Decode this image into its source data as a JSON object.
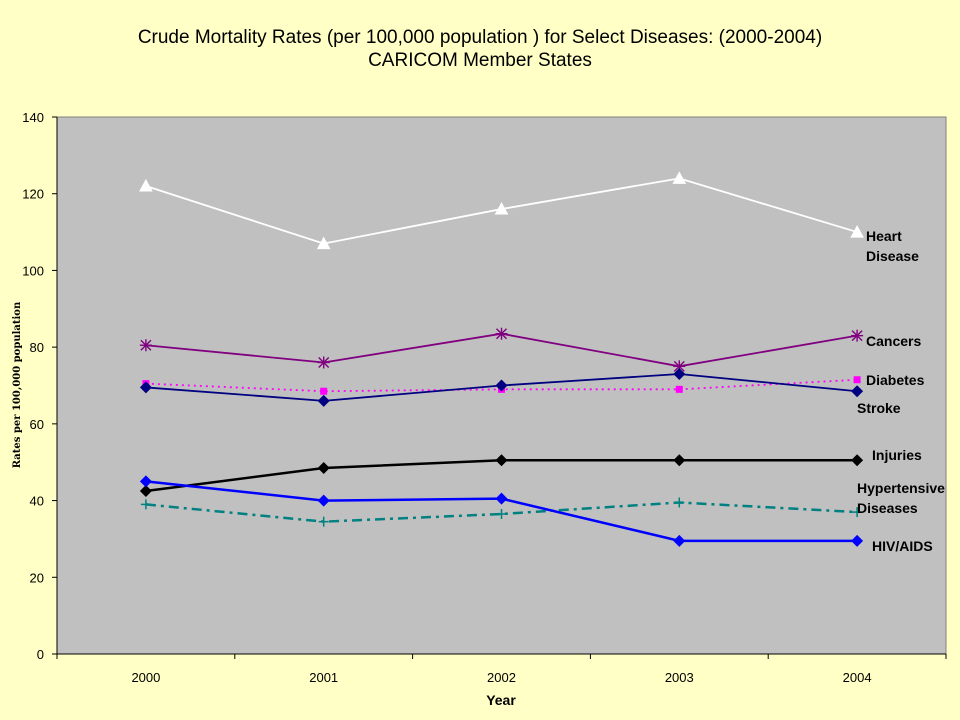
{
  "chart_data": {
    "type": "line",
    "title": "Crude Mortality Rates (per 100,000 population ) for Select Diseases: (2000-2004)",
    "subtitle": "CARICOM Member States",
    "xlabel": "Year",
    "ylabel": "Rates per 100,000 population",
    "x": [
      "2000",
      "2001",
      "2002",
      "2003",
      "2004"
    ],
    "ylim": [
      0,
      140
    ],
    "yticks": [
      0,
      20,
      40,
      60,
      80,
      100,
      120,
      140
    ],
    "ytick_labels": [
      "0",
      "20",
      "40",
      "60",
      "80",
      "100",
      "120",
      "140"
    ],
    "grid": false,
    "legend": "none (series labeled at right end of lines)",
    "series": [
      {
        "name": "Heart Disease",
        "label_lines": [
          "Heart",
          "Disease"
        ],
        "values": [
          122,
          107,
          116,
          124,
          110
        ],
        "color": "#FFFFFF",
        "marker": "triangle",
        "dash": "solid"
      },
      {
        "name": "Cancers",
        "label_lines": [
          "Cancers"
        ],
        "values": [
          80.5,
          76,
          83.5,
          75,
          83
        ],
        "color": "#800080",
        "marker": "star",
        "dash": "solid"
      },
      {
        "name": "Diabetes",
        "label_lines": [
          "Diabetes"
        ],
        "values": [
          70.5,
          68.5,
          69,
          69,
          71.5
        ],
        "color": "#FF00FF",
        "marker": "square",
        "dash": "dotted"
      },
      {
        "name": "Stroke",
        "label_lines": [
          "Stroke"
        ],
        "values": [
          69.5,
          66,
          70,
          73,
          68.5
        ],
        "color": "#000080",
        "marker": "diamond",
        "dash": "solid"
      },
      {
        "name": "Injuries",
        "label_lines": [
          "Injuries"
        ],
        "values": [
          42.5,
          48.5,
          50.5,
          50.5,
          50.5
        ],
        "color": "#000000",
        "marker": "diamond",
        "dash": "solid"
      },
      {
        "name": "Hypertensive Diseases",
        "label_lines": [
          "Hypertensive",
          "Diseases"
        ],
        "values": [
          39,
          34.5,
          36.5,
          39.5,
          37
        ],
        "color": "#008080",
        "marker": "plus",
        "dash": "dashdot"
      },
      {
        "name": "HIV/AIDS",
        "label_lines": [
          "HIV/AIDS"
        ],
        "values": [
          45,
          40,
          40.5,
          29.5,
          29.5
        ],
        "color": "#0000FF",
        "marker": "diamond",
        "dash": "solid"
      }
    ]
  }
}
